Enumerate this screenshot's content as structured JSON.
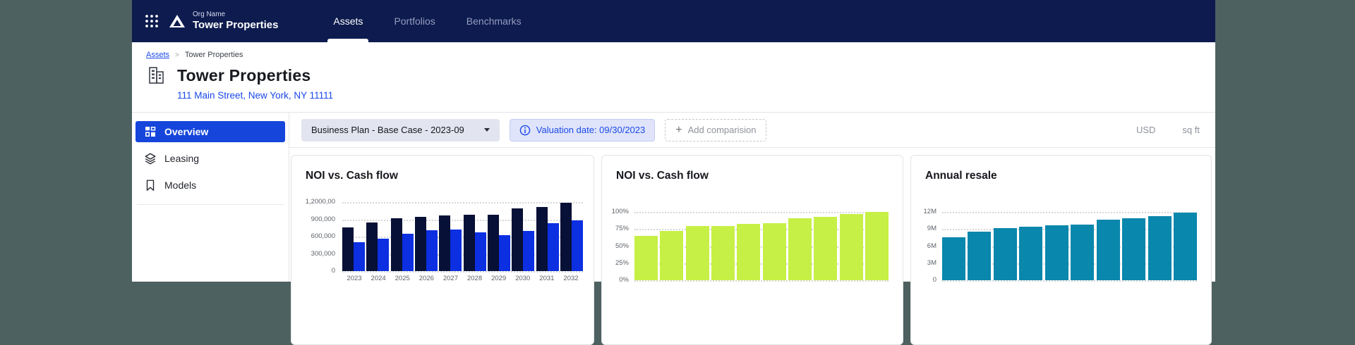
{
  "navbar": {
    "org_label": "Org Name",
    "org_name": "Tower Properties",
    "tabs": [
      {
        "label": "Assets",
        "active": true
      },
      {
        "label": "Portfolios",
        "active": false
      },
      {
        "label": "Benchmarks",
        "active": false
      }
    ]
  },
  "breadcrumb": {
    "link": "Assets",
    "separator": ">",
    "current": "Tower Properties"
  },
  "header": {
    "title": "Tower Properties",
    "address": "111 Main Street, New York, NY 11111"
  },
  "sidebar": {
    "items": [
      {
        "label": "Overview",
        "icon": "dashboard-icon",
        "active": true
      },
      {
        "label": "Leasing",
        "icon": "layers-icon",
        "active": false
      },
      {
        "label": "Models",
        "icon": "bookmark-icon",
        "active": false
      }
    ]
  },
  "toolbar": {
    "scenario_select": "Business Plan - Base Case - 2023-09",
    "valuation_chip": "Valuation date: 09/30/2023",
    "add_comparison_label": "Add comparision",
    "unit_currency": "USD",
    "unit_area": "sq ft"
  },
  "colors": {
    "outer_background": "#4e6161",
    "navbar": "#0d1b4e",
    "accent_blue": "#1b49e8",
    "sidebar_active": "#1545db",
    "noi_bar": "#071036",
    "cashflow_bar": "#0c2fe2",
    "lime_bar": "#c6f046",
    "teal_bar": "#0a87ac"
  },
  "chart_data": [
    {
      "type": "bar",
      "title": "NOI vs. Cash flow",
      "categories": [
        "2023",
        "2024",
        "2025",
        "2026",
        "2027",
        "2028",
        "2029",
        "2030",
        "2031",
        "2032"
      ],
      "series": [
        {
          "name": "NOI",
          "color": "#071036",
          "values": [
            760000,
            845000,
            920000,
            940000,
            965000,
            975000,
            975000,
            1090000,
            1120000,
            1185000
          ]
        },
        {
          "name": "Cash flow",
          "color": "#0c2fe2",
          "values": [
            500000,
            560000,
            645000,
            705000,
            722000,
            669000,
            620000,
            695000,
            830000,
            884000
          ]
        }
      ],
      "ylim": [
        0,
        1200000
      ],
      "yticks": [
        {
          "label": "1,2000,00",
          "value": 1200000
        },
        {
          "label": "900,000",
          "value": 900000
        },
        {
          "label": "600,000",
          "value": 600000
        },
        {
          "label": "300,000",
          "value": 300000
        },
        {
          "label": "0",
          "value": 0
        }
      ],
      "grid": "dotted horizontal",
      "legend": "none"
    },
    {
      "type": "bar",
      "title": "NOI vs. Cash flow",
      "bar_color": "#c6f046",
      "values": [
        65,
        72,
        79,
        79,
        82,
        84,
        91,
        93,
        97,
        100
      ],
      "ylim": [
        0,
        100
      ],
      "yticks": [
        {
          "label": "100%",
          "value": 100
        },
        {
          "label": "75%",
          "value": 75
        },
        {
          "label": "50%",
          "value": 50
        },
        {
          "label": "25%",
          "value": 25
        },
        {
          "label": "0%",
          "value": 0
        }
      ],
      "grid": "dotted horizontal",
      "legend": "none"
    },
    {
      "type": "bar",
      "title": "Annual resale",
      "bar_color": "#0a87ac",
      "values": [
        7.6,
        8.5,
        9.2,
        9.4,
        9.7,
        9.8,
        10.6,
        10.9,
        11.3,
        11.9
      ],
      "ylim": [
        0,
        12
      ],
      "yticks": [
        {
          "label": "12M",
          "value": 12
        },
        {
          "label": "9M",
          "value": 9
        },
        {
          "label": "6M",
          "value": 6
        },
        {
          "label": "3M",
          "value": 3
        },
        {
          "label": "0",
          "value": 0
        }
      ],
      "grid": "dotted horizontal",
      "legend": "none"
    }
  ]
}
